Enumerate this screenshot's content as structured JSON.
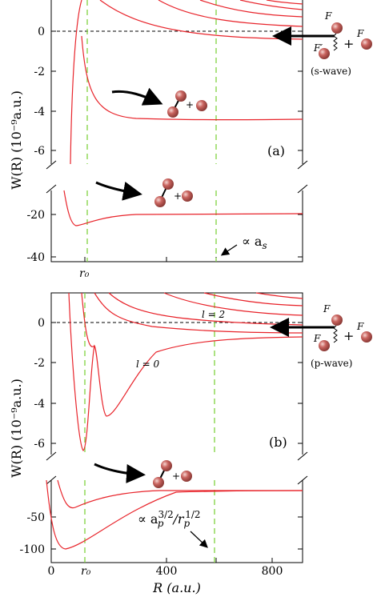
{
  "figure": {
    "panel_a": {
      "tag": "(a)",
      "ylabel": "W(R) (10⁻⁹a.u.)",
      "upper_yticks": [
        "0",
        "-2",
        "-4",
        "-6"
      ],
      "lower_yticks": [
        "-20",
        "-40"
      ],
      "xtick_r0": "r₀",
      "scaling_label": "∝ a",
      "scaling_sub": "s",
      "incoming": {
        "F_top": "F",
        "F_right": "F",
        "F_prime": "F′",
        "plus": "+",
        "wave": "(s-wave)"
      },
      "plus_upper": "+",
      "plus_lower": "+"
    },
    "panel_b": {
      "tag": "(b)",
      "ylabel": "W(R) (10⁻⁹a.u.)",
      "upper_yticks": [
        "0",
        "-2",
        "-4",
        "-6"
      ],
      "lower_yticks": [
        "-50",
        "-100"
      ],
      "xticks": [
        "0",
        "400",
        "800"
      ],
      "xtick_r0": "r₀",
      "xlabel": "R (a.u.)",
      "l2_label": "l = 2",
      "l0_label": "l = 0",
      "scaling_label": "∝ a",
      "scaling_sup1": "3/2",
      "scaling_mid": "p",
      "scaling_rest": "/r",
      "scaling_sub2": "p",
      "scaling_sup2": "1/2",
      "incoming": {
        "F_top": "F",
        "F_right": "F",
        "F_left": "F",
        "plus": "+",
        "wave": "(p-wave)"
      },
      "plus_lower": "+"
    },
    "colors": {
      "curve": "#e8242b",
      "dashed_guide": "#7fd23f",
      "axis": "#000000",
      "atom": "#b9524d"
    }
  }
}
